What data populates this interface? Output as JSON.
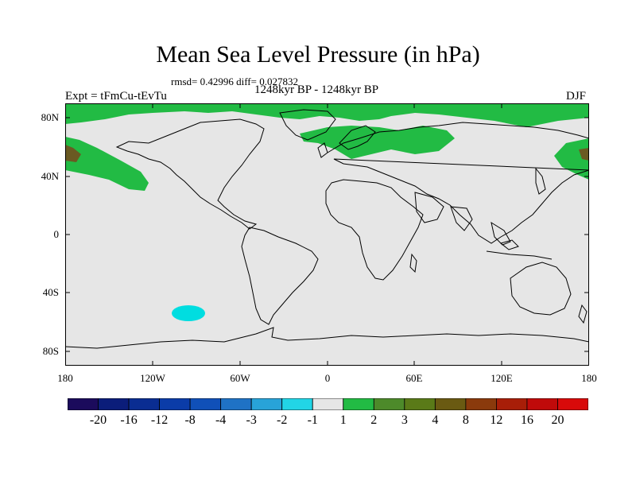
{
  "title": "Mean Sea Level Pressure (in hPa)",
  "stats": "rmsd= 0.42996 diff= 0.027832",
  "subtitle": "1248kyr BP - 1248kyr BP",
  "expt": "Expt = tFmCu-tEvTu",
  "season": "DJF",
  "axes": {
    "y_ticks": [
      "80N",
      "40N",
      "0",
      "40S",
      "80S"
    ],
    "x_ticks": [
      "180",
      "120W",
      "60W",
      "0",
      "60E",
      "120E",
      "180"
    ]
  },
  "colors": {
    "background": "#e6e6e6",
    "green_1_2": "#22bb44",
    "brown_2_3": "#6a5a22",
    "cyan_minus2_minus1": "#00dde0"
  },
  "colorbar": {
    "labels": [
      "-20",
      "-16",
      "-12",
      "-8",
      "-4",
      "-3",
      "-2",
      "-1",
      "1",
      "2",
      "3",
      "4",
      "8",
      "12",
      "16",
      "20"
    ],
    "colors": [
      "#1b0b5c",
      "#0b1d7a",
      "#0a2d92",
      "#0b3ca8",
      "#1050b8",
      "#1f72c5",
      "#28a3d8",
      "#22d5e6",
      "#e6e6e6",
      "#22bb44",
      "#4d8a2a",
      "#5a7a18",
      "#6a5a12",
      "#8a3a0c",
      "#a81e08",
      "#c00a0a",
      "#d80a0a"
    ]
  }
}
